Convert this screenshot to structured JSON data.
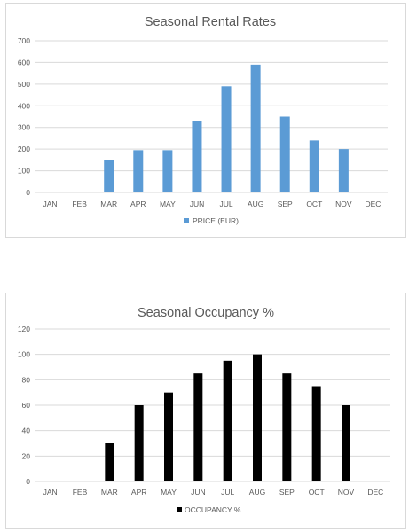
{
  "chart_data": [
    {
      "type": "bar",
      "title": "Seasonal Rental Rates",
      "categories": [
        "JAN",
        "FEB",
        "MAR",
        "APR",
        "MAY",
        "JUN",
        "JUL",
        "AUG",
        "SEP",
        "OCT",
        "NOV",
        "DEC"
      ],
      "series": [
        {
          "name": "PRICE (EUR)",
          "values": [
            0,
            0,
            150,
            195,
            195,
            330,
            490,
            590,
            350,
            240,
            200,
            0
          ]
        }
      ],
      "ylim": [
        0,
        700
      ],
      "yticks": [
        "0",
        "100",
        "200",
        "300",
        "400",
        "500",
        "600",
        "700"
      ],
      "grid": true,
      "legend": "bottom",
      "color": "#5b9bd5"
    },
    {
      "type": "bar",
      "title": "Seasonal Occupancy %",
      "categories": [
        "JAN",
        "FEB",
        "MAR",
        "APR",
        "MAY",
        "JUN",
        "JUL",
        "AUG",
        "SEP",
        "OCT",
        "NOV",
        "DEC"
      ],
      "series": [
        {
          "name": "OCCUPANCY %",
          "values": [
            0,
            0,
            30,
            60,
            70,
            85,
            95,
            100,
            85,
            75,
            60,
            0
          ]
        }
      ],
      "ylim": [
        0,
        120
      ],
      "yticks": [
        "0",
        "20",
        "40",
        "60",
        "80",
        "100",
        "120"
      ],
      "grid": true,
      "legend": "bottom",
      "color": "#000000"
    }
  ]
}
